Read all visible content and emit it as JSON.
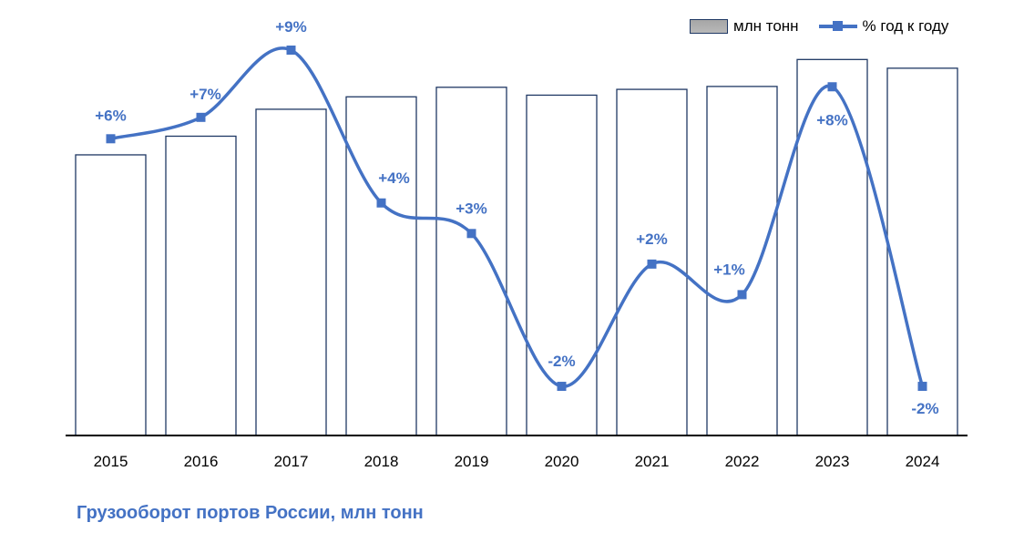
{
  "chart_data": {
    "type": "bar+line",
    "title": "Грузооборот портов России, млн тонн",
    "categories": [
      "2015",
      "2016",
      "2017",
      "2018",
      "2019",
      "2020",
      "2021",
      "2022",
      "2023",
      "2024"
    ],
    "series": [
      {
        "name": "млн тонн",
        "type": "bar",
        "axis": "primary",
        "values": [
          677,
          722,
          787,
          817,
          840,
          821,
          835,
          842,
          907,
          886
        ],
        "labels": [
          "677",
          "722",
          "787",
          "817",
          "840",
          "821",
          "835",
          "842",
          "907",
          "886"
        ]
      },
      {
        "name": "% год к году",
        "type": "line",
        "axis": "secondary",
        "values": [
          6.1,
          6.8,
          9.0,
          4.0,
          3.0,
          -2.0,
          2.0,
          1.0,
          7.8,
          -2.0
        ],
        "labels": [
          "+6%",
          "+7%",
          "+9%",
          "+4%",
          "+3%",
          "-2%",
          "+2%",
          "+1%",
          "+8%",
          "-2%"
        ]
      }
    ],
    "ylim": [
      0,
      1000
    ],
    "y2lim": [
      -5.6,
      10
    ],
    "legend": "top-right",
    "grid": false,
    "colors": {
      "bar_top": "#a6a6a6",
      "bar_border": "#1f3864",
      "line": "#4472c4",
      "title": "#4472c4"
    }
  }
}
